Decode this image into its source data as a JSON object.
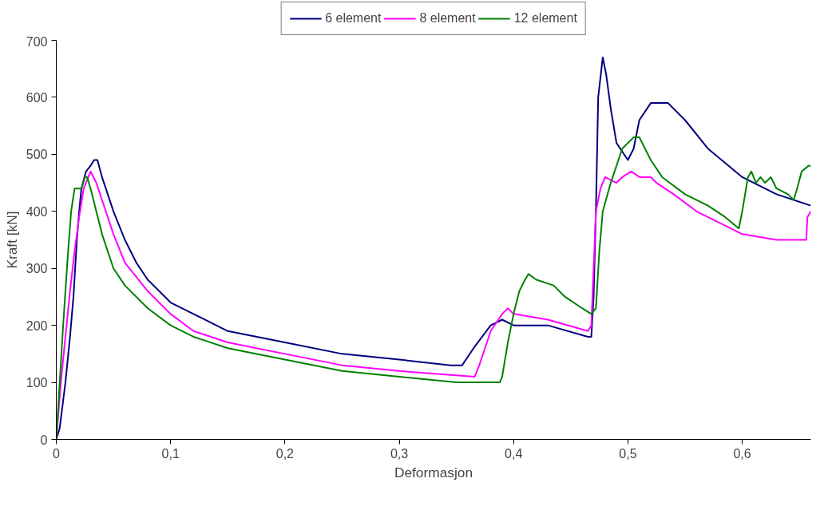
{
  "chart_data": {
    "type": "line",
    "xlabel": "Deformasjon",
    "ylabel": "Kraft [kN]",
    "xlim": [
      0,
      0.66
    ],
    "ylim": [
      0,
      700
    ],
    "xticks": [
      0,
      {
        "value": 0.1,
        "label": "0,1"
      },
      {
        "value": 0.2,
        "label": "0,2"
      },
      {
        "value": 0.3,
        "label": "0,3"
      },
      {
        "value": 0.4,
        "label": "0,4"
      },
      {
        "value": 0.5,
        "label": "0,5"
      },
      {
        "value": 0.6,
        "label": "0,6"
      }
    ],
    "yticks": [
      0,
      100,
      200,
      300,
      400,
      500,
      600,
      700
    ],
    "grid": false,
    "legend": "top",
    "marker": "none",
    "line_style": "solid",
    "series": [
      {
        "name": "6 element",
        "color": "#000080",
        "x": [
          0,
          0.003,
          0.008,
          0.012,
          0.015,
          0.018,
          0.02,
          0.022,
          0.026,
          0.03,
          0.033,
          0.036,
          0.04,
          0.05,
          0.06,
          0.07,
          0.08,
          0.1,
          0.12,
          0.15,
          0.2,
          0.25,
          0.3,
          0.345,
          0.355,
          0.365,
          0.38,
          0.39,
          0.4,
          0.43,
          0.465,
          0.468,
          0.47,
          0.472,
          0.474,
          0.478,
          0.481,
          0.485,
          0.49,
          0.5,
          0.505,
          0.51,
          0.52,
          0.528,
          0.535,
          0.55,
          0.57,
          0.6,
          0.63,
          0.66
        ],
        "values": [
          0,
          20,
          100,
          180,
          250,
          350,
          400,
          440,
          470,
          480,
          490,
          490,
          460,
          400,
          350,
          310,
          280,
          240,
          220,
          190,
          170,
          150,
          140,
          130,
          130,
          160,
          200,
          210,
          200,
          200,
          180,
          180,
          250,
          400,
          600,
          670,
          640,
          580,
          520,
          490,
          510,
          560,
          590,
          590,
          590,
          560,
          510,
          460,
          430,
          410
        ]
      },
      {
        "name": "8 element",
        "color": "#ff00ff",
        "x": [
          0,
          0.004,
          0.008,
          0.012,
          0.016,
          0.02,
          0.024,
          0.028,
          0.03,
          0.035,
          0.04,
          0.05,
          0.06,
          0.08,
          0.1,
          0.12,
          0.15,
          0.2,
          0.25,
          0.3,
          0.366,
          0.37,
          0.375,
          0.38,
          0.39,
          0.395,
          0.4,
          0.43,
          0.465,
          0.468,
          0.47,
          0.472,
          0.476,
          0.48,
          0.49,
          0.495,
          0.503,
          0.51,
          0.52,
          0.525,
          0.54,
          0.56,
          0.6,
          0.63,
          0.656,
          0.657,
          0.66
        ],
        "values": [
          0,
          100,
          180,
          260,
          330,
          390,
          440,
          460,
          470,
          450,
          420,
          360,
          310,
          260,
          220,
          190,
          170,
          150,
          130,
          120,
          110,
          130,
          160,
          190,
          220,
          230,
          220,
          210,
          190,
          200,
          300,
          400,
          440,
          460,
          450,
          460,
          470,
          460,
          460,
          450,
          430,
          400,
          360,
          350,
          350,
          390,
          400
        ]
      },
      {
        "name": "12 element",
        "color": "#008000",
        "x": [
          0,
          0.003,
          0.006,
          0.01,
          0.013,
          0.016,
          0.02,
          0.022,
          0.025,
          0.027,
          0.03,
          0.035,
          0.04,
          0.05,
          0.06,
          0.08,
          0.1,
          0.12,
          0.15,
          0.2,
          0.25,
          0.3,
          0.35,
          0.388,
          0.39,
          0.395,
          0.4,
          0.405,
          0.41,
          0.413,
          0.42,
          0.435,
          0.445,
          0.46,
          0.468,
          0.472,
          0.475,
          0.478,
          0.485,
          0.495,
          0.505,
          0.51,
          0.52,
          0.53,
          0.55,
          0.57,
          0.585,
          0.597,
          0.6,
          0.605,
          0.608,
          0.612,
          0.616,
          0.62,
          0.625,
          0.63,
          0.64,
          0.645,
          0.648,
          0.652,
          0.658,
          0.66
        ],
        "values": [
          0,
          100,
          200,
          320,
          400,
          440,
          440,
          440,
          460,
          460,
          440,
          400,
          360,
          300,
          270,
          230,
          200,
          180,
          160,
          140,
          120,
          110,
          100,
          100,
          110,
          170,
          220,
          260,
          280,
          290,
          280,
          270,
          250,
          230,
          220,
          230,
          330,
          400,
          450,
          510,
          530,
          530,
          490,
          460,
          430,
          410,
          390,
          370,
          400,
          460,
          470,
          450,
          460,
          450,
          460,
          440,
          430,
          420,
          440,
          470,
          480,
          480
        ]
      }
    ]
  }
}
